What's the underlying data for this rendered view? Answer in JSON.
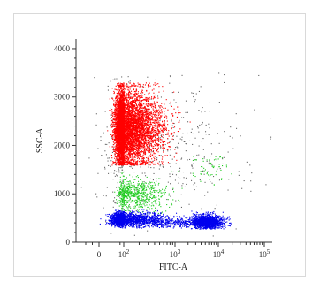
{
  "chart_data": {
    "type": "scatter",
    "xlabel": "FITC-A",
    "ylabel": "SSC-A",
    "x_scale": "biexponential (linear near 0, log above ~10^2)",
    "xlim": [
      -120,
      150000
    ],
    "ylim": [
      0,
      4200
    ],
    "x_ticks": [
      {
        "value": 0,
        "label": "0"
      },
      {
        "value": 100,
        "label": "10",
        "exp": "2"
      },
      {
        "value": 1000,
        "label": "10",
        "exp": "3"
      },
      {
        "value": 10000,
        "label": "10",
        "exp": "4"
      },
      {
        "value": 100000,
        "label": "10",
        "exp": "5"
      }
    ],
    "y_ticks": [
      0,
      1000,
      2000,
      3000,
      4000
    ],
    "grid": false,
    "series": [
      {
        "color": "#ff0000",
        "clusters": [
          {
            "x_center": 100,
            "y_center": 2350,
            "n": 7000,
            "x_spread_decades": 0.35,
            "y_spread": 380,
            "y_range": [
              1600,
              3300
            ]
          }
        ]
      },
      {
        "color": "#22cc22",
        "clusters": [
          {
            "x_center": 160,
            "y_center": 1000,
            "n": 700,
            "x_spread_decades": 0.3,
            "y_spread": 170,
            "y_range": [
              600,
              1500
            ]
          },
          {
            "x_center": 7000,
            "y_center": 1550,
            "n": 60,
            "x_spread_decades": 0.2,
            "y_spread": 150,
            "y_range": [
              1100,
              1800
            ]
          }
        ]
      },
      {
        "color": "#0000ee",
        "clusters": [
          {
            "x_center": 80,
            "y_center": 480,
            "n": 2200,
            "x_spread_decades": 0.45,
            "y_spread": 70,
            "y_range": [
              300,
              700
            ]
          },
          {
            "x_center": 5500,
            "y_center": 430,
            "n": 1600,
            "x_spread_decades": 0.18,
            "y_spread": 70,
            "y_range": [
              280,
              650
            ]
          },
          {
            "x_center": 800,
            "y_center": 400,
            "n": 250,
            "x_spread_decades": 0.35,
            "y_spread": 50,
            "y_range": [
              300,
              550
            ]
          }
        ]
      },
      {
        "color": "#666666",
        "clusters": [
          {
            "x_center": 300,
            "y_center": 1900,
            "n": 500,
            "x_spread_decades": 1.1,
            "y_spread": 700,
            "y_range": [
              100,
              3500
            ]
          }
        ]
      }
    ]
  }
}
